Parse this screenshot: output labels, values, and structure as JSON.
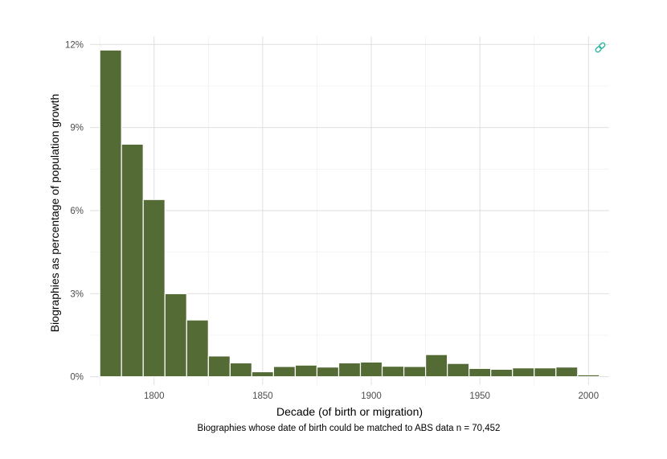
{
  "chart_data": {
    "type": "bar",
    "title": "",
    "xlabel": "Decade (of birth or migration)",
    "ylabel": "Biographies as percentage of population growth",
    "caption": "Biographies whose date of birth could be matched to ABS data n = 70,452",
    "x": [
      1780,
      1790,
      1800,
      1810,
      1820,
      1830,
      1840,
      1850,
      1860,
      1870,
      1880,
      1890,
      1900,
      1910,
      1920,
      1930,
      1940,
      1950,
      1960,
      1970,
      1980,
      1990,
      2000
    ],
    "values": [
      11.8,
      8.4,
      6.4,
      3.0,
      2.05,
      0.75,
      0.5,
      0.18,
      0.37,
      0.42,
      0.35,
      0.5,
      0.53,
      0.38,
      0.37,
      0.8,
      0.48,
      0.3,
      0.27,
      0.32,
      0.32,
      0.35,
      0.07
    ],
    "x_ticks": [
      1800,
      1850,
      1900,
      1950,
      2000
    ],
    "x_tick_labels": [
      "1800",
      "1850",
      "1900",
      "1950",
      "2000"
    ],
    "y_ticks": [
      0,
      3,
      6,
      9,
      12
    ],
    "y_tick_labels": [
      "0%",
      "3%",
      "6%",
      "9%",
      "12%"
    ],
    "xlim": [
      1770.5,
      2009.5
    ],
    "ylim": [
      -0.3,
      12.3
    ],
    "grid": true,
    "legend": "none",
    "bar_color": "#556b35",
    "link_icon_color": "#2db3a0"
  }
}
